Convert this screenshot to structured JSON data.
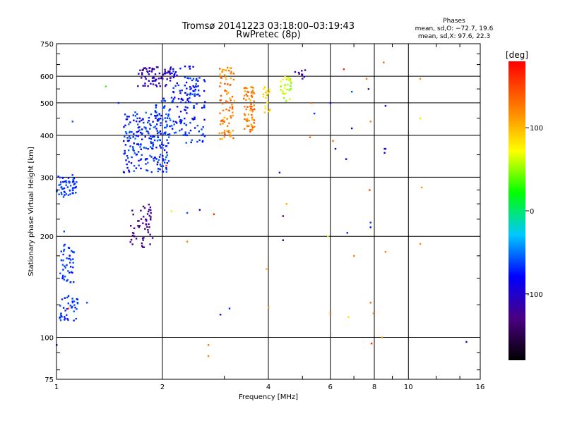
{
  "chart_data": {
    "type": "scatter",
    "title": "Tromsø 20141223 03:18:00–03:19:43",
    "subtitle": "RwPretec (8p)",
    "xlabel": "Frequency [MHz]",
    "ylabel": "Stationary phase Virtual Height [km]",
    "x_scale": "log",
    "y_scale": "log",
    "xlim": [
      1,
      16
    ],
    "ylim": [
      75,
      750
    ],
    "x_ticks": [
      1,
      2,
      4,
      6,
      8,
      10,
      16
    ],
    "y_ticks": [
      75,
      100,
      200,
      300,
      400,
      500,
      600,
      750
    ],
    "grid": true,
    "stats": {
      "heading": "Phases",
      "line_o": "mean, sd,O: −72.7, 19.6",
      "line_x": "mean, sd,X:  97.6, 22.3"
    },
    "colorbar": {
      "label": "[deg]",
      "range": [
        -180,
        180
      ],
      "ticks": [
        100,
        0,
        -100
      ]
    },
    "clusters": [
      {
        "f": [
          1.0,
          1.14
        ],
        "h": [
          262,
          305
        ],
        "n": 55,
        "phase": [
          -80,
          -55
        ]
      },
      {
        "f": [
          1.02,
          1.12
        ],
        "h": [
          145,
          190
        ],
        "n": 45,
        "phase": [
          -80,
          -55
        ]
      },
      {
        "f": [
          1.02,
          1.15
        ],
        "h": [
          112,
          135
        ],
        "n": 40,
        "phase": [
          -80,
          -55
        ]
      },
      {
        "f": [
          1.55,
          2.1
        ],
        "h": [
          310,
          470
        ],
        "n": 220,
        "phase": [
          -90,
          -50
        ]
      },
      {
        "f": [
          1.9,
          2.35
        ],
        "h": [
          400,
          520
        ],
        "n": 60,
        "phase": [
          -85,
          -55
        ]
      },
      {
        "f": [
          1.7,
          2.2
        ],
        "h": [
          560,
          640
        ],
        "n": 75,
        "phase": [
          -125,
          -100
        ]
      },
      {
        "f": [
          2.1,
          2.5
        ],
        "h": [
          500,
          650
        ],
        "n": 45,
        "phase": [
          -90,
          -60
        ]
      },
      {
        "f": [
          2.3,
          2.65
        ],
        "h": [
          380,
          600
        ],
        "n": 70,
        "phase": [
          -85,
          -55
        ]
      },
      {
        "f": [
          1.62,
          1.88
        ],
        "h": [
          185,
          250
        ],
        "n": 55,
        "phase": [
          -140,
          -110
        ]
      },
      {
        "f": [
          2.9,
          3.2
        ],
        "h": [
          390,
          640
        ],
        "n": 85,
        "phase": [
          95,
          145
        ]
      },
      {
        "f": [
          3.4,
          3.65
        ],
        "h": [
          410,
          560
        ],
        "n": 70,
        "phase": [
          95,
          145
        ]
      },
      {
        "f": [
          3.85,
          4.05
        ],
        "h": [
          460,
          560
        ],
        "n": 20,
        "phase": [
          75,
          100
        ]
      },
      {
        "f": [
          4.3,
          4.65
        ],
        "h": [
          500,
          600
        ],
        "n": 30,
        "phase": [
          40,
          80
        ]
      },
      {
        "f": [
          4.75,
          5.1
        ],
        "h": [
          590,
          630
        ],
        "n": 10,
        "phase": [
          -140,
          -100
        ]
      }
    ],
    "points": [
      {
        "f": 1.38,
        "h": 560,
        "phase": 30
      },
      {
        "f": 1.5,
        "h": 500,
        "phase": -70
      },
      {
        "f": 1.11,
        "h": 440,
        "phase": -60
      },
      {
        "f": 1.0,
        "h": 95,
        "phase": -80
      },
      {
        "f": 1.05,
        "h": 207,
        "phase": -60
      },
      {
        "f": 1.08,
        "h": 122,
        "phase": 150
      },
      {
        "f": 1.22,
        "h": 127,
        "phase": -60
      },
      {
        "f": 2.05,
        "h": 325,
        "phase": 150
      },
      {
        "f": 2.12,
        "h": 238,
        "phase": 60
      },
      {
        "f": 2.35,
        "h": 235,
        "phase": -60
      },
      {
        "f": 2.55,
        "h": 240,
        "phase": -100
      },
      {
        "f": 2.8,
        "h": 233,
        "phase": 160
      },
      {
        "f": 2.35,
        "h": 193,
        "phase": 120
      },
      {
        "f": 2.92,
        "h": 117,
        "phase": -100
      },
      {
        "f": 3.1,
        "h": 122,
        "phase": -70
      },
      {
        "f": 2.7,
        "h": 95,
        "phase": 130
      },
      {
        "f": 2.7,
        "h": 88,
        "phase": 120
      },
      {
        "f": 3.95,
        "h": 160,
        "phase": 100
      },
      {
        "f": 4.0,
        "h": 123,
        "phase": 110
      },
      {
        "f": 4.3,
        "h": 310,
        "phase": -110
      },
      {
        "f": 4.4,
        "h": 230,
        "phase": -130
      },
      {
        "f": 4.5,
        "h": 250,
        "phase": 100
      },
      {
        "f": 4.4,
        "h": 195,
        "phase": -140
      },
      {
        "f": 5.25,
        "h": 395,
        "phase": 130
      },
      {
        "f": 5.4,
        "h": 465,
        "phase": -70
      },
      {
        "f": 5.3,
        "h": 500,
        "phase": 140
      },
      {
        "f": 5.9,
        "h": 200,
        "phase": 60
      },
      {
        "f": 6.0,
        "h": 118,
        "phase": 130
      },
      {
        "f": 6.0,
        "h": 500,
        "phase": -100
      },
      {
        "f": 6.1,
        "h": 385,
        "phase": 130
      },
      {
        "f": 6.2,
        "h": 365,
        "phase": -100
      },
      {
        "f": 6.55,
        "h": 630,
        "phase": 160
      },
      {
        "f": 6.65,
        "h": 340,
        "phase": -90
      },
      {
        "f": 6.7,
        "h": 205,
        "phase": -70
      },
      {
        "f": 6.75,
        "h": 115,
        "phase": 80
      },
      {
        "f": 6.9,
        "h": 540,
        "phase": -60
      },
      {
        "f": 6.9,
        "h": 420,
        "phase": -80
      },
      {
        "f": 7.0,
        "h": 175,
        "phase": 120
      },
      {
        "f": 7.6,
        "h": 590,
        "phase": 130
      },
      {
        "f": 7.7,
        "h": 550,
        "phase": -120
      },
      {
        "f": 7.75,
        "h": 275,
        "phase": 150
      },
      {
        "f": 7.8,
        "h": 220,
        "phase": -70
      },
      {
        "f": 7.8,
        "h": 213,
        "phase": -80
      },
      {
        "f": 7.8,
        "h": 440,
        "phase": 120
      },
      {
        "f": 7.8,
        "h": 127,
        "phase": 130
      },
      {
        "f": 7.85,
        "h": 96,
        "phase": 160
      },
      {
        "f": 7.95,
        "h": 118,
        "phase": 120
      },
      {
        "f": 8.5,
        "h": 660,
        "phase": 130
      },
      {
        "f": 8.55,
        "h": 365,
        "phase": -110
      },
      {
        "f": 8.6,
        "h": 490,
        "phase": -90
      },
      {
        "f": 8.6,
        "h": 180,
        "phase": 120
      },
      {
        "f": 8.4,
        "h": 100,
        "phase": 110
      },
      {
        "f": 10.8,
        "h": 590,
        "phase": 110
      },
      {
        "f": 10.8,
        "h": 450,
        "phase": 60
      },
      {
        "f": 10.9,
        "h": 280,
        "phase": 110
      },
      {
        "f": 10.8,
        "h": 190,
        "phase": 110
      },
      {
        "f": 14.6,
        "h": 97,
        "phase": -110
      },
      {
        "f": 8.6,
        "h": 365,
        "phase": -100
      },
      {
        "f": 8.55,
        "h": 355,
        "phase": -90
      }
    ]
  }
}
